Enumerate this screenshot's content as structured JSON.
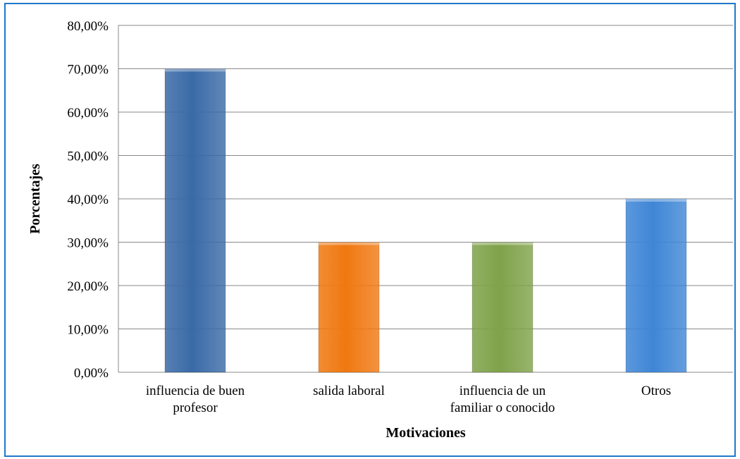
{
  "chart_data": {
    "type": "bar",
    "categories": [
      [
        "influencia de buen",
        "profesor"
      ],
      [
        "salida laboral"
      ],
      [
        "influencia de un",
        "familiar o conocido"
      ],
      [
        "Otros"
      ]
    ],
    "values": [
      70,
      30,
      30,
      40
    ],
    "colors": [
      "#3a6aa6",
      "#f07810",
      "#7fa24a",
      "#3f86d6"
    ],
    "yticks": [
      "0,00%",
      "10,00%",
      "20,00%",
      "30,00%",
      "40,00%",
      "50,00%",
      "60,00%",
      "70,00%",
      "80,00%"
    ],
    "ylim": [
      0,
      80
    ],
    "ylabel": "Porcentajes",
    "xlabel": "Motivaciones",
    "grid": true,
    "legend": false
  }
}
